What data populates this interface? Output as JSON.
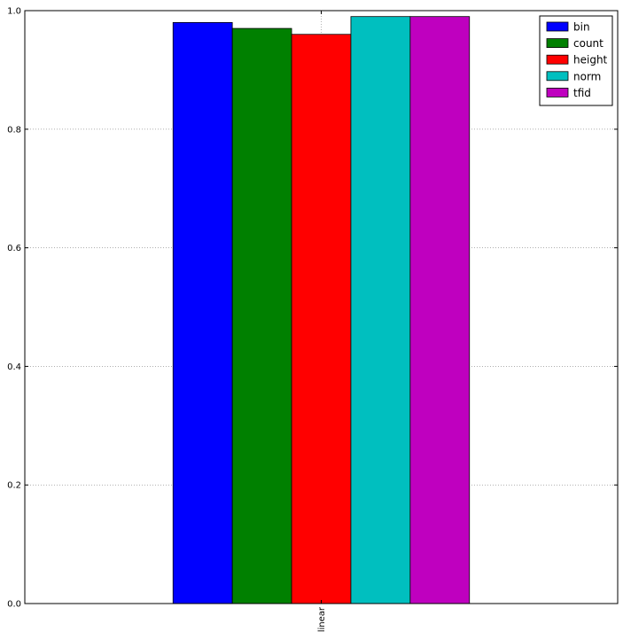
{
  "chart_data": {
    "type": "bar",
    "categories": [
      "linear"
    ],
    "series": [
      {
        "name": "bin",
        "values": [
          0.98
        ],
        "color": "#0000ff"
      },
      {
        "name": "count",
        "values": [
          0.97
        ],
        "color": "#008000"
      },
      {
        "name": "height",
        "values": [
          0.96
        ],
        "color": "#ff0000"
      },
      {
        "name": "norm",
        "values": [
          0.99
        ],
        "color": "#00bfbf"
      },
      {
        "name": "tfid",
        "values": [
          0.99
        ],
        "color": "#bf00bf"
      }
    ],
    "ylim": [
      0,
      1.0
    ],
    "yticks": [
      0.0,
      0.2,
      0.4,
      0.6,
      0.8,
      1.0
    ],
    "ytick_labels": [
      "0.0",
      "0.2",
      "0.4",
      "0.6",
      "0.8",
      "1.0"
    ],
    "xlabel": "",
    "ylabel": "",
    "title": "",
    "grid": true,
    "legend_position": "top-right"
  }
}
